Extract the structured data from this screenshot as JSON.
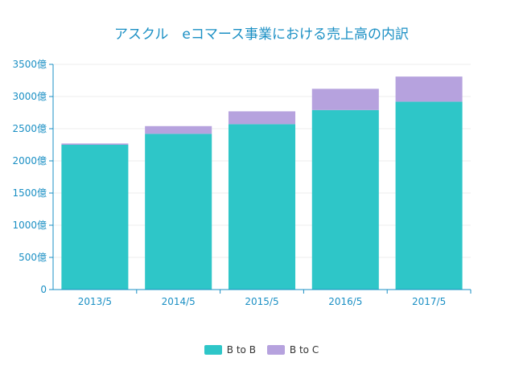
{
  "chart_data": {
    "type": "bar",
    "stacked": true,
    "title": "アスクル　eコマース事業における売上高の内訳",
    "categories": [
      "2013/5",
      "2014/5",
      "2015/5",
      "2016/5",
      "2017/5"
    ],
    "series": [
      {
        "name": "B to B",
        "color": "#2ec6c8",
        "values": [
          2250,
          2420,
          2570,
          2790,
          2920
        ]
      },
      {
        "name": "B to C",
        "color": "#b6a2de",
        "values": [
          20,
          120,
          200,
          330,
          390
        ]
      }
    ],
    "y_ticks": [
      "0",
      "500億",
      "1000億",
      "1500億",
      "2000億",
      "2500億",
      "3000億",
      "3500億"
    ],
    "ylim": [
      0,
      3500
    ],
    "grid": true,
    "legend_position": "bottom"
  }
}
